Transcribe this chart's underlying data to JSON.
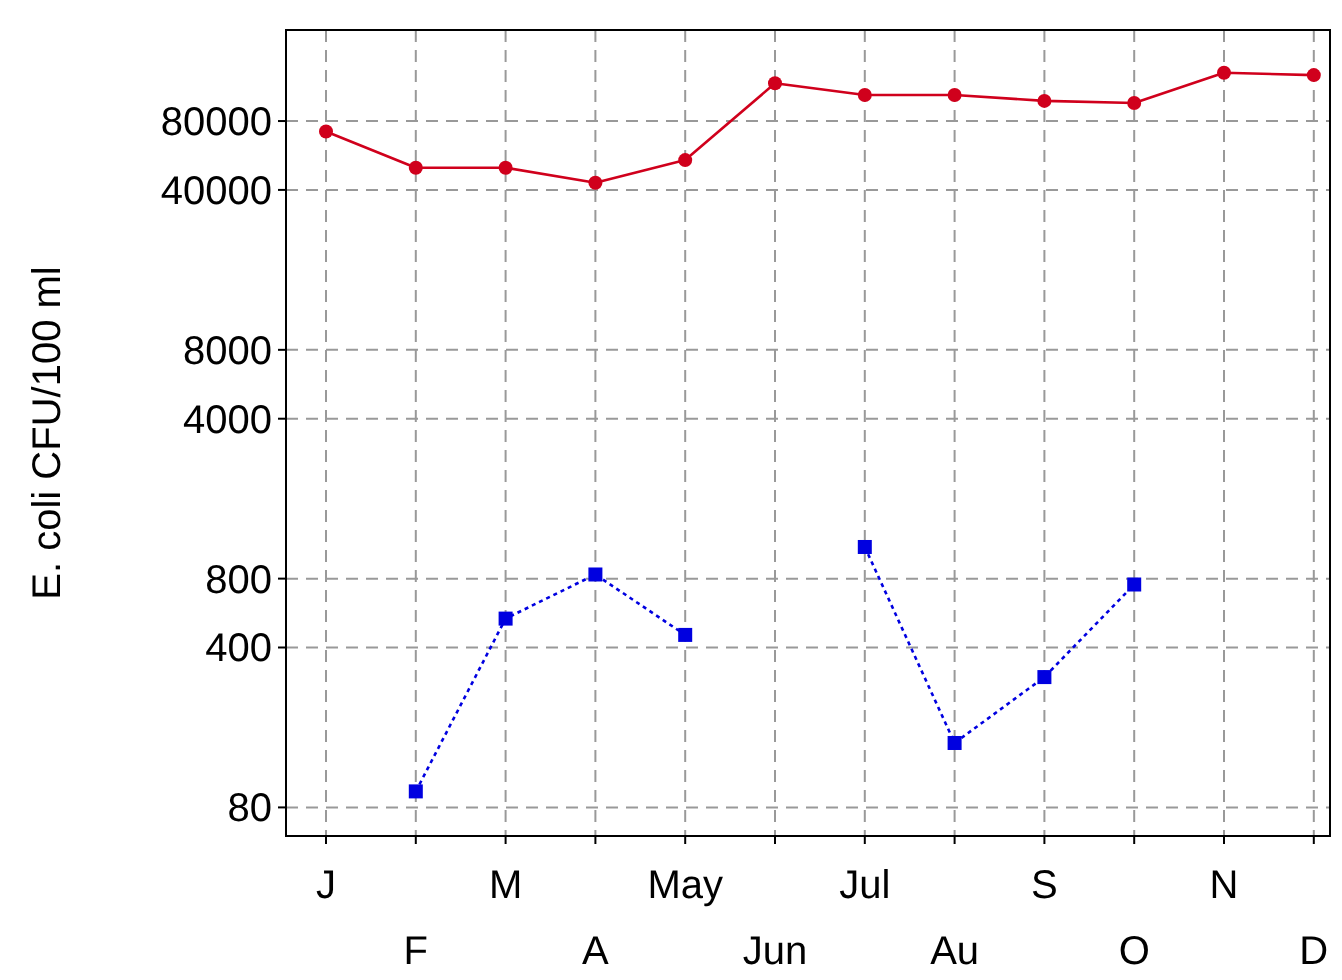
{
  "chart_data": {
    "type": "line",
    "ylabel": "E. coli CFU/100 ml",
    "log": "y",
    "grid": true,
    "categories": [
      "J",
      "F",
      "M",
      "A",
      "May",
      "Jun",
      "Jul",
      "Au",
      "S",
      "O",
      "N",
      "D"
    ],
    "ylim": [
      60,
      200000
    ],
    "yticks": [
      80,
      400,
      800,
      4000,
      8000,
      40000,
      80000
    ],
    "series": [
      {
        "color": "#d0001c",
        "marker": "circle",
        "line_style": "solid",
        "values": [
          72000,
          50000,
          50000,
          43000,
          54000,
          117000,
          104000,
          104000,
          98000,
          96000,
          130000,
          127000
        ]
      },
      {
        "color": "#0000e0",
        "marker": "square",
        "line_style": "dotted",
        "values": [
          null,
          94,
          535,
          834,
          454,
          null,
          1100,
          153,
          297,
          754,
          null,
          null
        ]
      }
    ]
  }
}
